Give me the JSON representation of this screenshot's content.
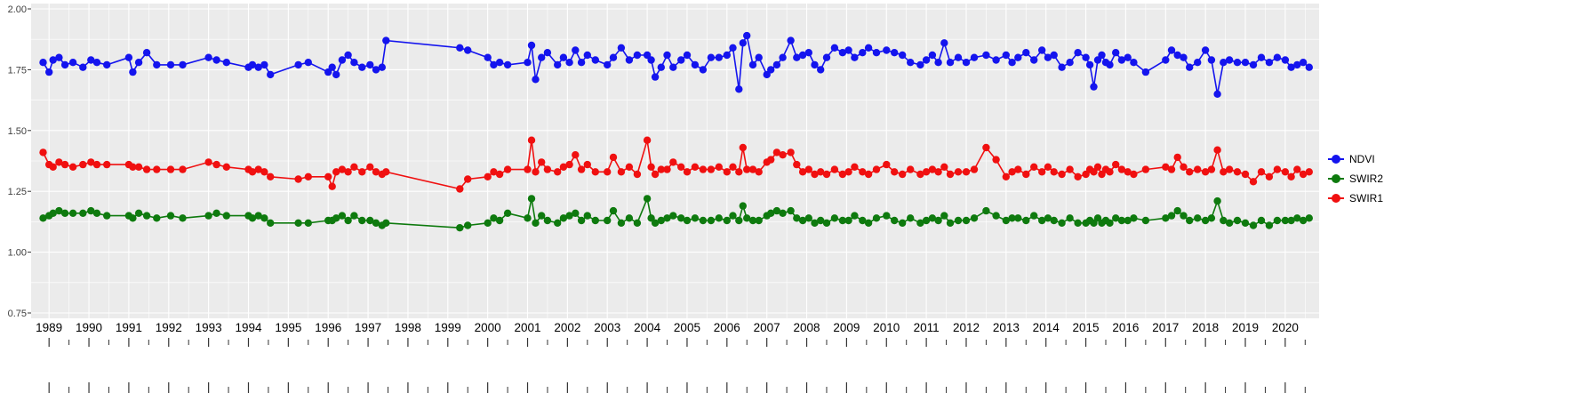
{
  "page": {
    "background": "#FFFFFF"
  },
  "chart_data": {
    "type": "line",
    "marker": true,
    "title": "",
    "xlabel": "",
    "ylabel": "",
    "panel_bg": "#EBEBEB",
    "grid_color": "#FFFFFF",
    "legend_position": "right",
    "xlim": [
      1988.55,
      2020.85
    ],
    "ylim": [
      0.75,
      2.0
    ],
    "x_ticks": [
      1989,
      1990,
      1991,
      1992,
      1993,
      1994,
      1995,
      1996,
      1997,
      1998,
      1999,
      2000,
      2001,
      2002,
      2003,
      2004,
      2005,
      2006,
      2007,
      2008,
      2009,
      2010,
      2011,
      2012,
      2013,
      2014,
      2015,
      2016,
      2017,
      2018,
      2019,
      2020
    ],
    "y_ticks": [
      "2.00",
      "1.75",
      "1.50",
      "1.25",
      "1.00",
      "0.75"
    ],
    "x": [
      1988.85,
      1989.0,
      1989.1,
      1989.25,
      1989.4,
      1989.6,
      1989.85,
      1990.05,
      1990.2,
      1990.45,
      1991.0,
      1991.1,
      1991.25,
      1991.45,
      1991.7,
      1992.05,
      1992.35,
      1993.0,
      1993.2,
      1993.45,
      1994.0,
      1994.1,
      1994.25,
      1994.4,
      1994.55,
      1995.25,
      1995.5,
      1996.0,
      1996.1,
      1996.2,
      1996.35,
      1996.5,
      1996.65,
      1996.85,
      1997.05,
      1997.2,
      1997.35,
      1997.45,
      1999.3,
      1999.5,
      2000.0,
      2000.15,
      2000.3,
      2000.5,
      2001.0,
      2001.1,
      2001.2,
      2001.35,
      2001.5,
      2001.75,
      2001.9,
      2002.05,
      2002.2,
      2002.35,
      2002.5,
      2002.7,
      2003.0,
      2003.15,
      2003.35,
      2003.55,
      2003.75,
      2004.0,
      2004.1,
      2004.2,
      2004.35,
      2004.5,
      2004.65,
      2004.85,
      2005.0,
      2005.2,
      2005.4,
      2005.6,
      2005.8,
      2006.0,
      2006.15,
      2006.3,
      2006.4,
      2006.5,
      2006.65,
      2006.8,
      2007.0,
      2007.1,
      2007.25,
      2007.4,
      2007.6,
      2007.75,
      2007.9,
      2008.05,
      2008.2,
      2008.35,
      2008.5,
      2008.7,
      2008.9,
      2009.05,
      2009.2,
      2009.4,
      2009.55,
      2009.75,
      2010.0,
      2010.2,
      2010.4,
      2010.6,
      2010.85,
      2011.0,
      2011.15,
      2011.3,
      2011.45,
      2011.6,
      2011.8,
      2012.0,
      2012.2,
      2012.5,
      2012.75,
      2013.0,
      2013.15,
      2013.3,
      2013.5,
      2013.7,
      2013.9,
      2014.05,
      2014.2,
      2014.4,
      2014.6,
      2014.8,
      2015.0,
      2015.1,
      2015.2,
      2015.3,
      2015.4,
      2015.5,
      2015.6,
      2015.75,
      2015.9,
      2016.05,
      2016.2,
      2016.5,
      2017.0,
      2017.15,
      2017.3,
      2017.45,
      2017.6,
      2017.8,
      2018.0,
      2018.15,
      2018.3,
      2018.45,
      2018.6,
      2018.8,
      2019.0,
      2019.2,
      2019.4,
      2019.6,
      2019.8,
      2020.0,
      2020.15,
      2020.3,
      2020.45,
      2020.6
    ],
    "series": [
      {
        "name": "NDVI",
        "color": "#1414EE",
        "values": [
          1.78,
          1.74,
          1.79,
          1.8,
          1.77,
          1.78,
          1.76,
          1.79,
          1.78,
          1.77,
          1.8,
          1.74,
          1.78,
          1.82,
          1.77,
          1.77,
          1.77,
          1.8,
          1.79,
          1.78,
          1.76,
          1.77,
          1.76,
          1.77,
          1.73,
          1.77,
          1.78,
          1.74,
          1.76,
          1.73,
          1.79,
          1.81,
          1.78,
          1.76,
          1.77,
          1.75,
          1.76,
          1.87,
          1.84,
          1.83,
          1.8,
          1.77,
          1.78,
          1.77,
          1.78,
          1.85,
          1.71,
          1.8,
          1.82,
          1.77,
          1.8,
          1.78,
          1.83,
          1.78,
          1.81,
          1.79,
          1.77,
          1.8,
          1.84,
          1.79,
          1.81,
          1.81,
          1.79,
          1.72,
          1.76,
          1.81,
          1.76,
          1.79,
          1.81,
          1.77,
          1.75,
          1.8,
          1.8,
          1.81,
          1.84,
          1.67,
          1.86,
          1.89,
          1.77,
          1.8,
          1.73,
          1.75,
          1.77,
          1.8,
          1.87,
          1.8,
          1.81,
          1.82,
          1.77,
          1.75,
          1.8,
          1.84,
          1.82,
          1.83,
          1.8,
          1.82,
          1.84,
          1.82,
          1.83,
          1.82,
          1.81,
          1.78,
          1.77,
          1.79,
          1.81,
          1.78,
          1.86,
          1.78,
          1.8,
          1.78,
          1.8,
          1.81,
          1.79,
          1.81,
          1.78,
          1.8,
          1.82,
          1.79,
          1.83,
          1.8,
          1.81,
          1.76,
          1.78,
          1.82,
          1.8,
          1.77,
          1.68,
          1.79,
          1.81,
          1.78,
          1.77,
          1.82,
          1.79,
          1.8,
          1.78,
          1.74,
          1.79,
          1.83,
          1.81,
          1.8,
          1.76,
          1.78,
          1.83,
          1.79,
          1.65,
          1.78,
          1.79,
          1.78,
          1.78,
          1.77,
          1.8,
          1.78,
          1.8,
          1.79,
          1.76,
          1.77,
          1.78,
          1.76
        ]
      },
      {
        "name": "SWIR2",
        "color": "#0E7A0E",
        "values": [
          1.14,
          1.15,
          1.16,
          1.17,
          1.16,
          1.16,
          1.16,
          1.17,
          1.16,
          1.15,
          1.15,
          1.14,
          1.16,
          1.15,
          1.14,
          1.15,
          1.14,
          1.15,
          1.16,
          1.15,
          1.15,
          1.14,
          1.15,
          1.14,
          1.12,
          1.12,
          1.12,
          1.13,
          1.13,
          1.14,
          1.15,
          1.13,
          1.15,
          1.13,
          1.13,
          1.12,
          1.11,
          1.12,
          1.1,
          1.11,
          1.12,
          1.14,
          1.13,
          1.16,
          1.14,
          1.22,
          1.12,
          1.15,
          1.13,
          1.12,
          1.14,
          1.15,
          1.16,
          1.13,
          1.15,
          1.13,
          1.13,
          1.17,
          1.12,
          1.14,
          1.12,
          1.22,
          1.14,
          1.12,
          1.13,
          1.14,
          1.15,
          1.14,
          1.13,
          1.14,
          1.13,
          1.13,
          1.14,
          1.13,
          1.15,
          1.13,
          1.19,
          1.14,
          1.13,
          1.13,
          1.15,
          1.16,
          1.17,
          1.16,
          1.17,
          1.14,
          1.13,
          1.14,
          1.12,
          1.13,
          1.12,
          1.14,
          1.13,
          1.13,
          1.15,
          1.13,
          1.12,
          1.14,
          1.15,
          1.13,
          1.12,
          1.14,
          1.12,
          1.13,
          1.14,
          1.13,
          1.15,
          1.12,
          1.13,
          1.13,
          1.14,
          1.17,
          1.15,
          1.13,
          1.14,
          1.14,
          1.13,
          1.15,
          1.13,
          1.14,
          1.13,
          1.12,
          1.14,
          1.12,
          1.12,
          1.13,
          1.12,
          1.14,
          1.12,
          1.13,
          1.12,
          1.14,
          1.13,
          1.13,
          1.14,
          1.13,
          1.14,
          1.15,
          1.17,
          1.15,
          1.13,
          1.14,
          1.13,
          1.14,
          1.21,
          1.13,
          1.12,
          1.13,
          1.12,
          1.11,
          1.13,
          1.11,
          1.13,
          1.13,
          1.13,
          1.14,
          1.13,
          1.14
        ]
      },
      {
        "name": "SWIR1",
        "color": "#F01010",
        "values": [
          1.41,
          1.36,
          1.35,
          1.37,
          1.36,
          1.35,
          1.36,
          1.37,
          1.36,
          1.36,
          1.36,
          1.35,
          1.35,
          1.34,
          1.34,
          1.34,
          1.34,
          1.37,
          1.36,
          1.35,
          1.34,
          1.33,
          1.34,
          1.33,
          1.31,
          1.3,
          1.31,
          1.31,
          1.27,
          1.33,
          1.34,
          1.33,
          1.35,
          1.33,
          1.35,
          1.33,
          1.32,
          1.33,
          1.26,
          1.3,
          1.31,
          1.33,
          1.32,
          1.34,
          1.34,
          1.46,
          1.33,
          1.37,
          1.34,
          1.33,
          1.35,
          1.36,
          1.4,
          1.34,
          1.36,
          1.33,
          1.33,
          1.39,
          1.33,
          1.35,
          1.32,
          1.46,
          1.35,
          1.32,
          1.34,
          1.34,
          1.37,
          1.35,
          1.33,
          1.35,
          1.34,
          1.34,
          1.35,
          1.33,
          1.35,
          1.33,
          1.43,
          1.34,
          1.34,
          1.33,
          1.37,
          1.38,
          1.41,
          1.4,
          1.41,
          1.36,
          1.33,
          1.34,
          1.32,
          1.33,
          1.32,
          1.34,
          1.32,
          1.33,
          1.35,
          1.33,
          1.32,
          1.34,
          1.36,
          1.33,
          1.32,
          1.34,
          1.32,
          1.33,
          1.34,
          1.33,
          1.35,
          1.32,
          1.33,
          1.33,
          1.34,
          1.43,
          1.38,
          1.31,
          1.33,
          1.34,
          1.32,
          1.35,
          1.33,
          1.35,
          1.33,
          1.32,
          1.34,
          1.31,
          1.32,
          1.34,
          1.33,
          1.35,
          1.32,
          1.34,
          1.33,
          1.36,
          1.34,
          1.33,
          1.32,
          1.34,
          1.35,
          1.34,
          1.39,
          1.35,
          1.33,
          1.34,
          1.33,
          1.34,
          1.42,
          1.33,
          1.34,
          1.33,
          1.32,
          1.29,
          1.33,
          1.31,
          1.34,
          1.33,
          1.31,
          1.34,
          1.32,
          1.33
        ]
      }
    ],
    "legend": [
      "NDVI",
      "SWIR2",
      "SWIR1"
    ]
  }
}
